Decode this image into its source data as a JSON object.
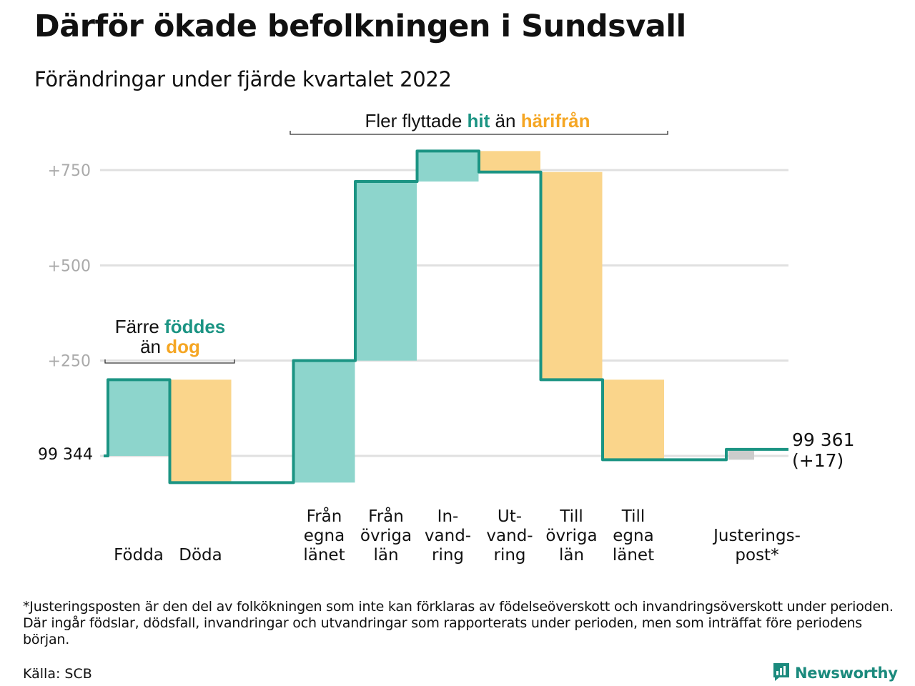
{
  "title": "Därför ökade befolkningen i Sundsvall",
  "subtitle": "Förändringar under fjärde kvartalet 2022",
  "colors": {
    "increase": "#8dd5cc",
    "decrease": "#fad58b",
    "adjustment": "#cccccc",
    "line": "#1b9483",
    "grid": "#e0e0e0",
    "axis_label": "#aaaaaa",
    "hit": "#1b9483",
    "harifran": "#f5a623"
  },
  "annotations": {
    "births_deaths": {
      "line1_prefix": "Färre ",
      "line1_highlight": "föddes",
      "line2_prefix": "än ",
      "line2_highlight": "dog"
    },
    "migration": {
      "prefix": "Fler flyttade ",
      "highlight1": "hit",
      "middle": " än ",
      "highlight2": "härifrån"
    }
  },
  "chart_data": {
    "type": "waterfall",
    "start": {
      "label": "99 344",
      "value": 99344
    },
    "end": {
      "label": "99 361",
      "sublabel": "(+17)",
      "value": 99361,
      "change": 17
    },
    "yticks": [
      {
        "value": 250,
        "label": "+250"
      },
      {
        "value": 500,
        "label": "+500"
      },
      {
        "value": 750,
        "label": "+750"
      }
    ],
    "ylim": [
      -80,
      800
    ],
    "grid": true,
    "steps": [
      {
        "label_lines": [
          "Födda"
        ],
        "change": 200,
        "kind": "increase"
      },
      {
        "label_lines": [
          "Döda"
        ],
        "change": -270,
        "kind": "decrease"
      },
      {
        "label_lines": [
          ""
        ],
        "change": 0,
        "kind": "gap"
      },
      {
        "label_lines": [
          "Från",
          "egna",
          "länet"
        ],
        "change": 320,
        "kind": "increase"
      },
      {
        "label_lines": [
          "Från",
          "övriga",
          "län"
        ],
        "change": 470,
        "kind": "increase"
      },
      {
        "label_lines": [
          "In-",
          "vand-",
          "ring"
        ],
        "change": 80,
        "kind": "increase"
      },
      {
        "label_lines": [
          "Ut-",
          "vand-",
          "ring"
        ],
        "change": -55,
        "kind": "decrease"
      },
      {
        "label_lines": [
          "Till",
          "övriga",
          "län"
        ],
        "change": -545,
        "kind": "decrease"
      },
      {
        "label_lines": [
          "Till",
          "egna",
          "länet"
        ],
        "change": -210,
        "kind": "decrease"
      },
      {
        "label_lines": [
          ""
        ],
        "change": 0,
        "kind": "gap"
      },
      {
        "label_lines": [
          "Justerings-",
          "post*"
        ],
        "change": 27,
        "kind": "adjustment"
      }
    ]
  },
  "footnote": "*Justeringsposten är den del av folkökningen som inte kan förklaras av födelseöverskott och invandringsöverskott under perioden. Där ingår födslar, dödsfall, invandringar och utvandringar som rapporterats under perioden, men som inträffat före periodens början.",
  "source": "Källa: SCB",
  "logo": {
    "text": "Newsworthy",
    "icon": "newsworthy-chart-icon"
  }
}
